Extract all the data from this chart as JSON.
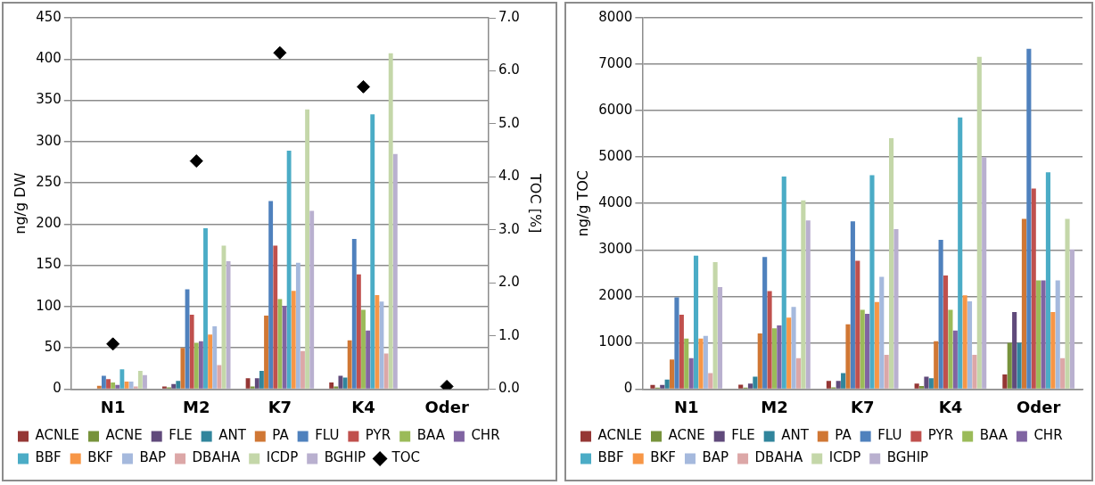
{
  "chart_data": [
    {
      "type": "bar",
      "ylabel": "ng/g DW",
      "y2label": "TOC [%]",
      "categories": [
        "N1",
        "M2",
        "K7",
        "K4",
        "Oder"
      ],
      "ylim": [
        0,
        450
      ],
      "yticks": [
        0,
        50,
        100,
        150,
        200,
        250,
        300,
        350,
        400,
        450
      ],
      "y2lim": [
        0,
        7
      ],
      "y2ticks": [
        {
          "value": 0,
          "label": "0.0"
        },
        {
          "value": 1,
          "label": "1.0"
        },
        {
          "value": 2,
          "label": "2.0"
        },
        {
          "value": 3,
          "label": "3.0"
        },
        {
          "value": 4,
          "label": "4.0"
        },
        {
          "value": 5,
          "label": "5.0"
        },
        {
          "value": 6,
          "label": "6.0"
        },
        {
          "value": 7,
          "label": "7.0"
        }
      ],
      "grid": "y",
      "legend": "bottom",
      "marker": "diamond",
      "series": [
        {
          "name": "ACNLE",
          "color": "#953735",
          "values": [
            0,
            3,
            13,
            8,
            0
          ]
        },
        {
          "name": "ACNE",
          "color": "#77933c",
          "values": [
            0,
            2,
            3,
            3,
            0
          ]
        },
        {
          "name": "FLE",
          "color": "#604a7b",
          "values": [
            0,
            6,
            13,
            16,
            0
          ]
        },
        {
          "name": "ANT",
          "color": "#31859c",
          "values": [
            0,
            10,
            22,
            14,
            0
          ]
        },
        {
          "name": "PA",
          "color": "#d07734",
          "values": [
            4,
            50,
            89,
            59,
            0
          ]
        },
        {
          "name": "FLU",
          "color": "#4f81bd",
          "values": [
            16,
            121,
            228,
            182,
            0
          ]
        },
        {
          "name": "PYR",
          "color": "#c0504d",
          "values": [
            12,
            90,
            174,
            139,
            0
          ]
        },
        {
          "name": "BAA",
          "color": "#9bbb59",
          "values": [
            8,
            56,
            109,
            96,
            0
          ]
        },
        {
          "name": "CHR",
          "color": "#8064a2",
          "values": [
            5,
            58,
            101,
            71,
            0
          ]
        },
        {
          "name": "BBF",
          "color": "#4bacc6",
          "values": [
            24,
            195,
            289,
            333,
            0
          ]
        },
        {
          "name": "BKF",
          "color": "#f79646",
          "values": [
            9,
            66,
            119,
            114,
            0
          ]
        },
        {
          "name": "BAP",
          "color": "#a5b9dd",
          "values": [
            9,
            76,
            153,
            106,
            0
          ]
        },
        {
          "name": "DBAHA",
          "color": "#dca7a7",
          "values": [
            3,
            29,
            46,
            43,
            0
          ]
        },
        {
          "name": "ICDP",
          "color": "#c4d7a9",
          "values": [
            22,
            174,
            339,
            407,
            0
          ]
        },
        {
          "name": "BGHIP",
          "color": "#b9b0cf",
          "values": [
            17,
            155,
            216,
            285,
            0
          ]
        },
        {
          "name": "TOC",
          "color": "#000000",
          "type": "scatter",
          "axis": "y2",
          "values": [
            0.85,
            4.3,
            6.34,
            5.7,
            0.05
          ]
        }
      ]
    },
    {
      "type": "bar",
      "ylabel": "ng/g TOC",
      "categories": [
        "N1",
        "M2",
        "K7",
        "K4",
        "Oder"
      ],
      "ylim": [
        0,
        8000
      ],
      "yticks": [
        0,
        1000,
        2000,
        3000,
        4000,
        5000,
        6000,
        7000,
        8000
      ],
      "grid": "y",
      "legend": "bottom",
      "series": [
        {
          "name": "ACNLE",
          "color": "#953735",
          "values": [
            90,
            95,
            175,
            120,
            315
          ]
        },
        {
          "name": "ACNE",
          "color": "#77933c",
          "values": [
            30,
            30,
            35,
            65,
            995
          ]
        },
        {
          "name": "FLE",
          "color": "#604a7b",
          "values": [
            90,
            120,
            175,
            265,
            1660
          ]
        },
        {
          "name": "ANT",
          "color": "#31859c",
          "values": [
            205,
            265,
            345,
            235,
            995
          ]
        },
        {
          "name": "PA",
          "color": "#d07734",
          "values": [
            635,
            1200,
            1395,
            1030,
            3670
          ]
        },
        {
          "name": "FLU",
          "color": "#4f81bd",
          "values": [
            1975,
            2845,
            3615,
            3215,
            7330
          ]
        },
        {
          "name": "PYR",
          "color": "#c0504d",
          "values": [
            1600,
            2110,
            2765,
            2450,
            4320
          ]
        },
        {
          "name": "BAA",
          "color": "#9bbb59",
          "values": [
            1090,
            1310,
            1710,
            1710,
            2340
          ]
        },
        {
          "name": "CHR",
          "color": "#8064a2",
          "values": [
            665,
            1370,
            1620,
            1260,
            2340
          ]
        },
        {
          "name": "BBF",
          "color": "#4bacc6",
          "values": [
            2875,
            4580,
            4610,
            5855,
            4670
          ]
        },
        {
          "name": "BKF",
          "color": "#f79646",
          "values": [
            1090,
            1540,
            1875,
            2020,
            1660
          ]
        },
        {
          "name": "BAP",
          "color": "#a5b9dd",
          "values": [
            1145,
            1770,
            2420,
            1890,
            2340
          ]
        },
        {
          "name": "DBAHA",
          "color": "#dca7a7",
          "values": [
            345,
            665,
            740,
            740,
            665
          ]
        },
        {
          "name": "ICDP",
          "color": "#c4d7a9",
          "values": [
            2735,
            4065,
            5405,
            7160,
            3670
          ]
        },
        {
          "name": "BGHIP",
          "color": "#b9b0cf",
          "values": [
            2200,
            3635,
            3445,
            5000,
            3010
          ]
        }
      ]
    }
  ]
}
